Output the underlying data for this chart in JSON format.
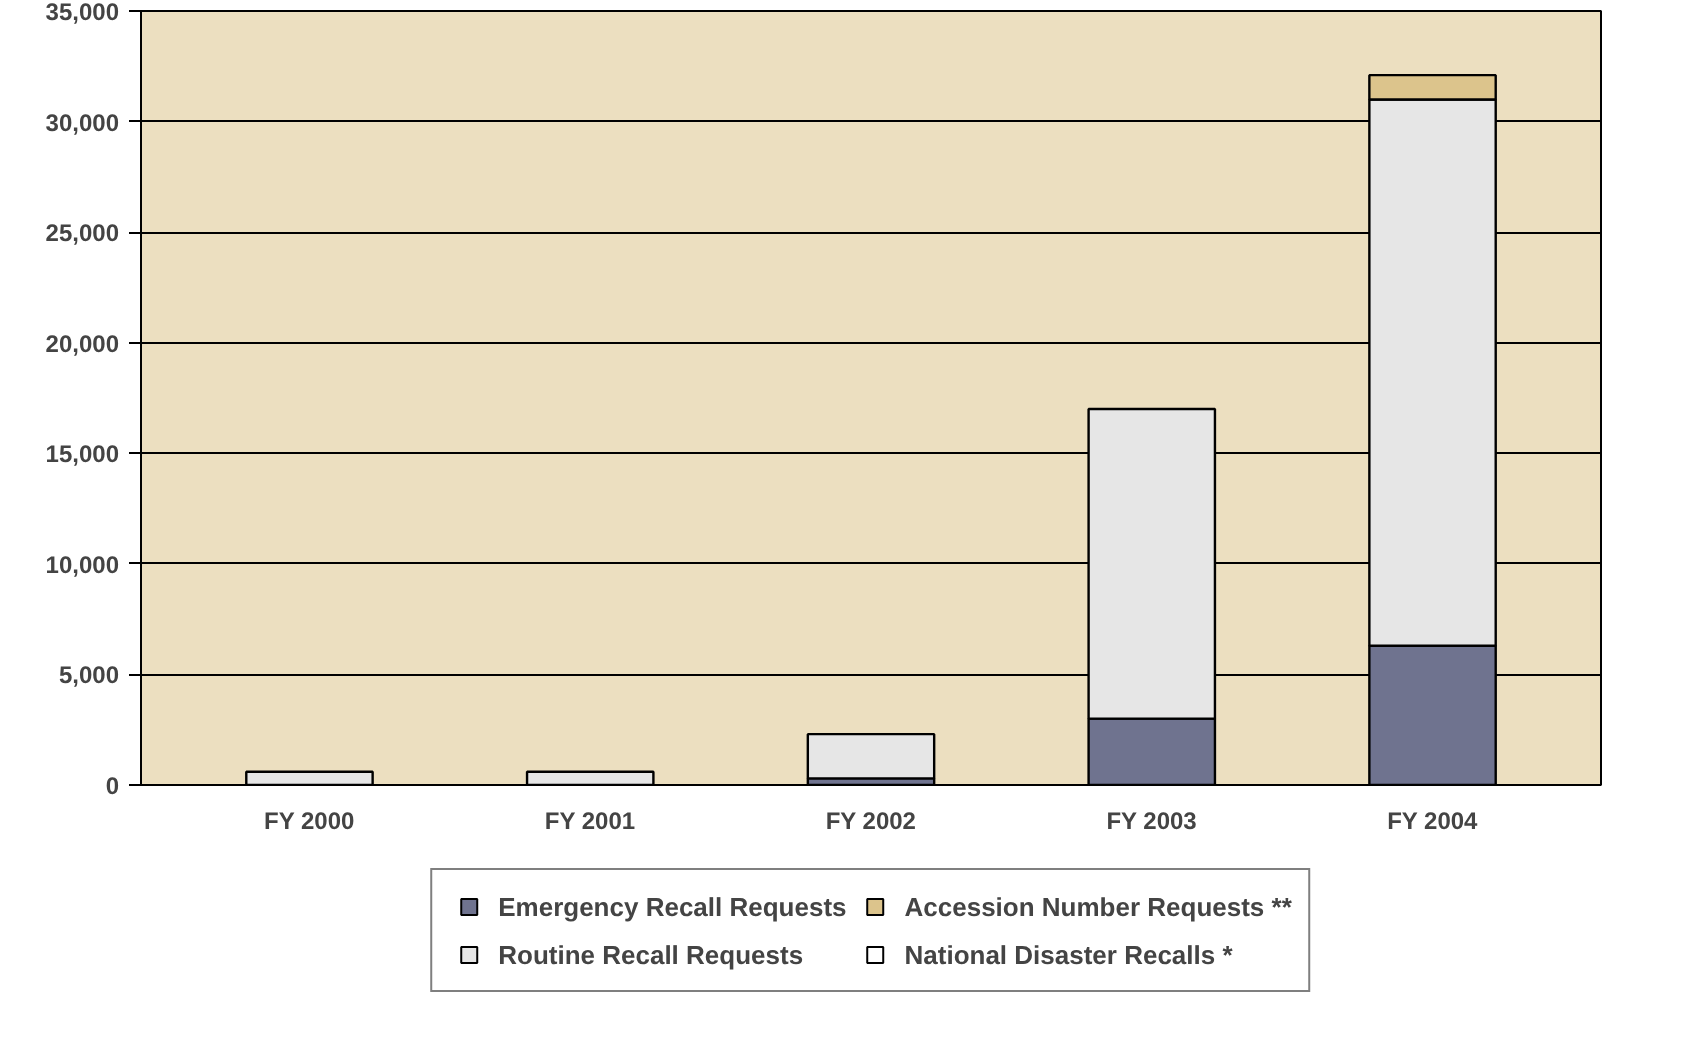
{
  "chart_data": {
    "type": "bar",
    "stacked": true,
    "categories": [
      "FY 2000",
      "FY 2001",
      "FY 2002",
      "FY 2003",
      "FY 2004"
    ],
    "series": [
      {
        "name": "Emergency Recall Requests",
        "color": "#6f738f",
        "values": [
          0,
          0,
          300,
          3000,
          6300
        ]
      },
      {
        "name": "Routine Recall Requests",
        "color": "#e6e6e6",
        "values": [
          600,
          600,
          2000,
          14000,
          24700
        ]
      },
      {
        "name": "Accession Number Requests **",
        "color": "#dcc48c",
        "values": [
          0,
          0,
          0,
          0,
          1100
        ]
      },
      {
        "name": "National Disaster Recalls *",
        "color": "#ffffff",
        "values": [
          0,
          0,
          0,
          0,
          0
        ]
      }
    ],
    "ylim": [
      0,
      35000
    ],
    "yticks": [
      {
        "value": 0,
        "label": "0"
      },
      {
        "value": 5000,
        "label": "5,000"
      },
      {
        "value": 10000,
        "label": "10,000"
      },
      {
        "value": 15000,
        "label": "15,000"
      },
      {
        "value": 20000,
        "label": "20,000"
      },
      {
        "value": 25000,
        "label": "25,000"
      },
      {
        "value": 30000,
        "label": "30,000"
      },
      {
        "value": 35000,
        "label": "35,000"
      }
    ],
    "grid": "y",
    "legend": "bottom"
  }
}
